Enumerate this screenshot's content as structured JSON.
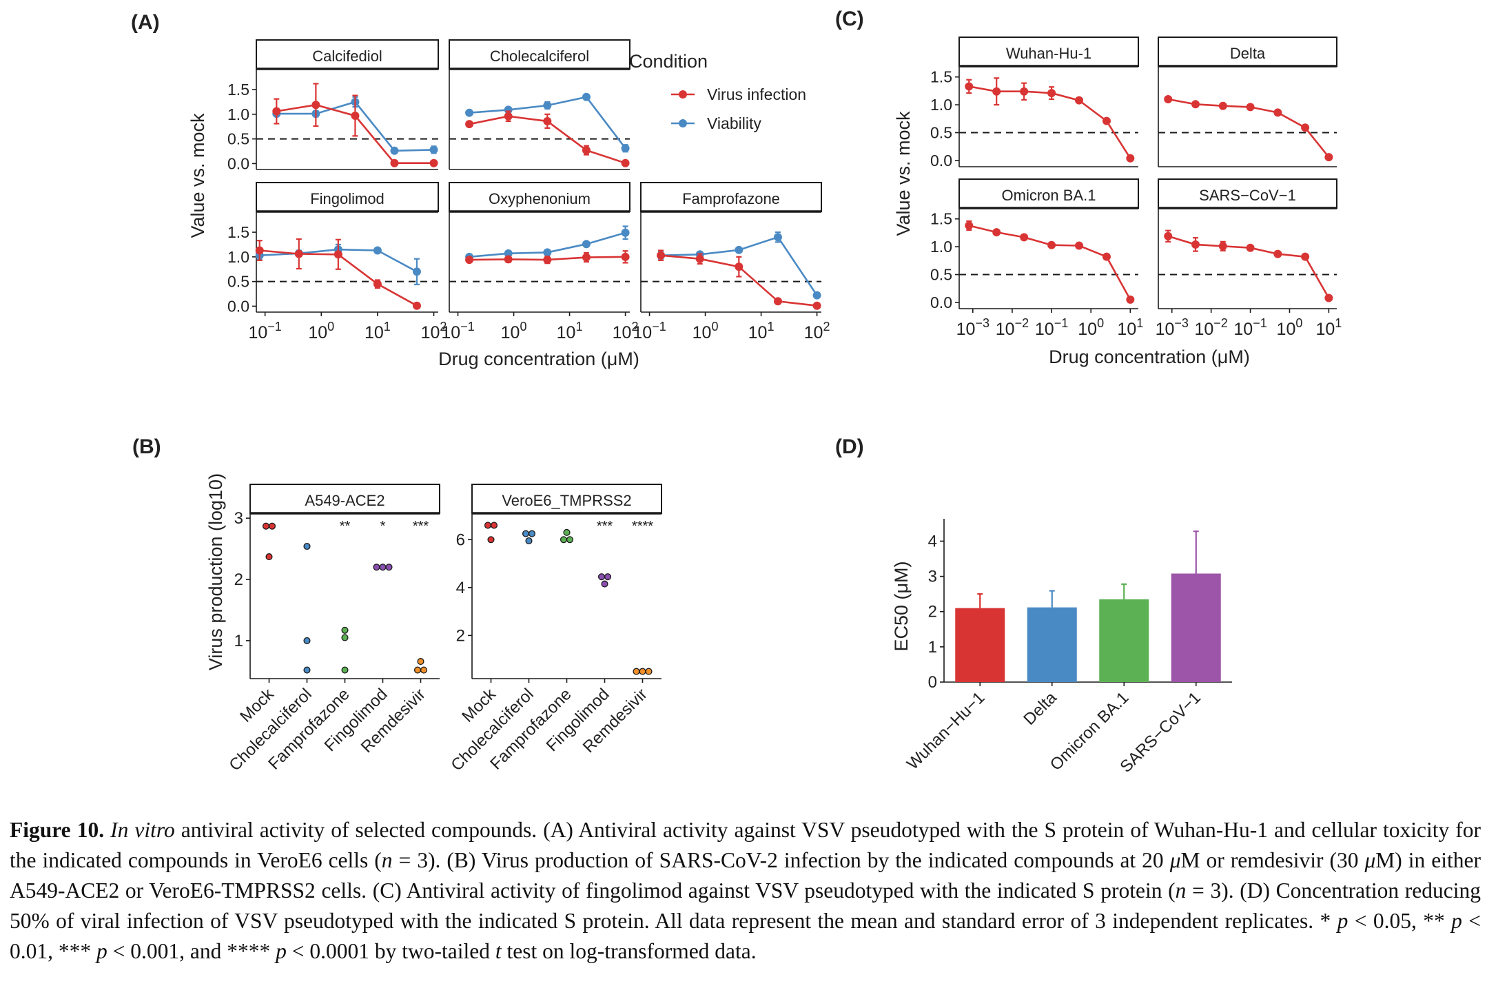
{
  "chart_data": [
    {
      "panel_label": "(A)",
      "type": "line",
      "ylabel": "Value vs. mock",
      "xlabel": "Drug concentration (μM)",
      "xscale": "log10",
      "xlim": [
        0.07,
        120
      ],
      "ylim": [
        -0.05,
        1.78
      ],
      "yticks": [
        "0.0",
        "0.5",
        "1.0",
        "1.5"
      ],
      "xtick_values": [
        0.1,
        1,
        10,
        100
      ],
      "xtick_exponents": [
        "−1",
        "0",
        "1",
        "2"
      ],
      "reference_line": 0.5,
      "legend_title": "Condition",
      "legend": [
        {
          "name": "Virus infection",
          "color": "#d93434"
        },
        {
          "name": "Viability",
          "color": "#4a8ac4"
        }
      ],
      "facets": [
        {
          "name": "Calcifediol",
          "virus": [
            [
              0.16,
              1.06,
              0.25
            ],
            [
              0.8,
              1.19,
              0.43
            ],
            [
              4,
              0.97,
              0.41
            ],
            [
              20,
              0.01,
              0.02
            ],
            [
              100,
              0.01,
              0.02
            ]
          ],
          "viability": [
            [
              0.16,
              1.01,
              0.05
            ],
            [
              0.8,
              1.01,
              0.06
            ],
            [
              4,
              1.25,
              0.1
            ],
            [
              20,
              0.26,
              0.04
            ],
            [
              100,
              0.28,
              0.07
            ]
          ]
        },
        {
          "name": "Cholecalciferol",
          "virus": [
            [
              0.16,
              0.8,
              0.03
            ],
            [
              0.8,
              0.96,
              0.1
            ],
            [
              4,
              0.86,
              0.14
            ],
            [
              20,
              0.27,
              0.09
            ],
            [
              100,
              0.01,
              0.02
            ]
          ],
          "viability": [
            [
              0.16,
              1.03,
              0.03
            ],
            [
              0.8,
              1.09,
              0.04
            ],
            [
              4,
              1.18,
              0.07
            ],
            [
              20,
              1.35,
              0.05
            ],
            [
              100,
              0.31,
              0.07
            ]
          ]
        },
        {
          "name": "Fingolimod",
          "virus": [
            [
              0.08,
              1.13,
              0.2
            ],
            [
              0.4,
              1.06,
              0.3
            ],
            [
              2,
              1.05,
              0.3
            ],
            [
              10,
              0.45,
              0.08
            ],
            [
              50,
              0.01,
              0.02
            ]
          ],
          "viability": [
            [
              0.08,
              1.03,
              0.09
            ],
            [
              0.4,
              1.07,
              0.06
            ],
            [
              2,
              1.15,
              0.1
            ],
            [
              10,
              1.13,
              0.03
            ],
            [
              50,
              0.7,
              0.26
            ]
          ]
        },
        {
          "name": "Oxyphenonium",
          "virus": [
            [
              0.16,
              0.94,
              0.04
            ],
            [
              0.8,
              0.95,
              0.06
            ],
            [
              4,
              0.94,
              0.07
            ],
            [
              20,
              0.99,
              0.09
            ],
            [
              100,
              1.0,
              0.12
            ]
          ],
          "viability": [
            [
              0.16,
              1.0,
              0.03
            ],
            [
              0.8,
              1.07,
              0.03
            ],
            [
              4,
              1.09,
              0.03
            ],
            [
              20,
              1.26,
              0.04
            ],
            [
              100,
              1.49,
              0.13
            ]
          ]
        },
        {
          "name": "Famprofazone",
          "virus": [
            [
              0.16,
              1.03,
              0.1
            ],
            [
              0.8,
              0.96,
              0.1
            ],
            [
              4,
              0.8,
              0.2
            ],
            [
              20,
              0.1,
              0.03
            ],
            [
              100,
              0.01,
              0.02
            ]
          ],
          "viability": [
            [
              0.16,
              1.03,
              0.07
            ],
            [
              0.8,
              1.05,
              0.04
            ],
            [
              4,
              1.14,
              0.04
            ],
            [
              20,
              1.4,
              0.1
            ],
            [
              100,
              0.22,
              0.04
            ]
          ]
        }
      ]
    },
    {
      "panel_label": "(B)",
      "type": "scatter",
      "ylabel": "Virus production (log10)",
      "categories": [
        "Mock",
        "Cholecalciferol",
        "Famprofazone",
        "Fingolimod",
        "Remdesivir"
      ],
      "colors": [
        "#d93434",
        "#4a8ac4",
        "#5bb153",
        "#8b4fb0",
        "#f0902a"
      ],
      "facets": [
        {
          "name": "A549-ACE2",
          "ylim": [
            0.38,
            3.08
          ],
          "yticks": [
            1,
            2,
            3
          ],
          "significance": [
            "",
            "",
            "**",
            "*",
            "***"
          ],
          "points": [
            [
              2.87,
              2.87,
              2.37
            ],
            [
              2.54,
              1.0,
              0.52
            ],
            [
              1.17,
              1.05,
              0.52
            ],
            [
              2.2,
              2.2,
              2.2
            ],
            [
              0.66,
              0.52,
              0.52
            ]
          ]
        },
        {
          "name": "VeroE6_TMPRSS2",
          "ylim": [
            0.2,
            7.1
          ],
          "yticks": [
            2,
            4,
            6
          ],
          "significance": [
            "",
            "",
            "",
            "***",
            "****"
          ],
          "points": [
            [
              6.6,
              6.6,
              6.0
            ],
            [
              6.25,
              6.25,
              5.95
            ],
            [
              6.3,
              6.0,
              6.0
            ],
            [
              4.45,
              4.45,
              4.15
            ],
            [
              0.5,
              0.5,
              0.5
            ]
          ]
        }
      ]
    },
    {
      "panel_label": "(C)",
      "type": "line",
      "ylabel": "Value vs. mock",
      "xlabel": "Drug concentration (μM)",
      "xscale": "log10",
      "xlim": [
        0.00045,
        16
      ],
      "ylim": [
        -0.05,
        1.62
      ],
      "yticks": [
        "0.0",
        "0.5",
        "1.0",
        "1.5"
      ],
      "xtick_values": [
        0.001,
        0.01,
        0.1,
        1,
        10
      ],
      "xtick_exponents": [
        "−3",
        "−2",
        "−1",
        "0",
        "1"
      ],
      "reference_line": 0.5,
      "color": "#d93434",
      "facets": [
        {
          "name": "Wuhan-Hu-1",
          "points": [
            [
              0.0008,
              1.33,
              0.12
            ],
            [
              0.004,
              1.24,
              0.24
            ],
            [
              0.02,
              1.24,
              0.15
            ],
            [
              0.1,
              1.21,
              0.11
            ],
            [
              0.5,
              1.08,
              0.03
            ],
            [
              2.5,
              0.71,
              0.02
            ],
            [
              10,
              0.04,
              0.02
            ]
          ]
        },
        {
          "name": "Delta",
          "points": [
            [
              0.0008,
              1.1,
              0.03
            ],
            [
              0.004,
              1.01,
              0.04
            ],
            [
              0.02,
              0.98,
              0.04
            ],
            [
              0.1,
              0.96,
              0.03
            ],
            [
              0.5,
              0.86,
              0.03
            ],
            [
              2.5,
              0.59,
              0.03
            ],
            [
              10,
              0.06,
              0.02
            ]
          ]
        },
        {
          "name": "Omicron BA.1",
          "points": [
            [
              0.0008,
              1.38,
              0.08
            ],
            [
              0.004,
              1.26,
              0.03
            ],
            [
              0.02,
              1.17,
              0.04
            ],
            [
              0.1,
              1.03,
              0.03
            ],
            [
              0.5,
              1.02,
              0.03
            ],
            [
              2.5,
              0.82,
              0.03
            ],
            [
              10,
              0.05,
              0.02
            ]
          ]
        },
        {
          "name": "SARS−CoV−1",
          "points": [
            [
              0.0008,
              1.19,
              0.1
            ],
            [
              0.004,
              1.04,
              0.12
            ],
            [
              0.02,
              1.01,
              0.08
            ],
            [
              0.1,
              0.98,
              0.04
            ],
            [
              0.5,
              0.87,
              0.03
            ],
            [
              2.5,
              0.82,
              0.03
            ],
            [
              10,
              0.08,
              0.02
            ]
          ]
        }
      ]
    },
    {
      "panel_label": "(D)",
      "type": "bar",
      "ylabel": "EC50 (μM)",
      "ylim": [
        0,
        4.4
      ],
      "yticks": [
        0,
        1,
        2,
        3,
        4
      ],
      "categories": [
        "Wuhan−Hu−1",
        "Delta",
        "Omicron BA.1",
        "SARS−CoV−1"
      ],
      "values": [
        2.1,
        2.12,
        2.35,
        3.08
      ],
      "errors": [
        0.4,
        0.47,
        0.43,
        1.2
      ],
      "colors": [
        "#d93434",
        "#4a8ac4",
        "#5bb153",
        "#9c55a8"
      ]
    }
  ],
  "caption": {
    "label": "Figure 10.",
    "text_html": " <i>In vitro</i> antiviral activity of selected compounds. (A) Antiviral activity against VSV pseudotyped with the S protein of Wuhan-Hu-1 and cellular toxicity for the indicated compounds in VeroE6 cells (<i>n</i> = 3). (B) Virus production of SARS-CoV-2 infection by the indicated compounds at 20 <i>μ</i>M or remdesivir (30 <i>μ</i>M) in either A549-ACE2 or VeroE6-TMPRSS2 cells. (C) Antiviral activity of fingolimod against VSV pseudotyped with the indicated S protein (<i>n</i> = 3). (D) Concentration reducing 50% of viral infection of VSV pseudotyped with the indicated S protein. All data represent the mean and standard error of 3 independent replicates. * <i>p</i> &lt; 0.05, ** <i>p</i> &lt; 0.01, *** <i>p</i> &lt; 0.001, and **** <i>p</i> &lt; 0.0001 by two-tailed <i>t</i> test on log-transformed data."
  }
}
